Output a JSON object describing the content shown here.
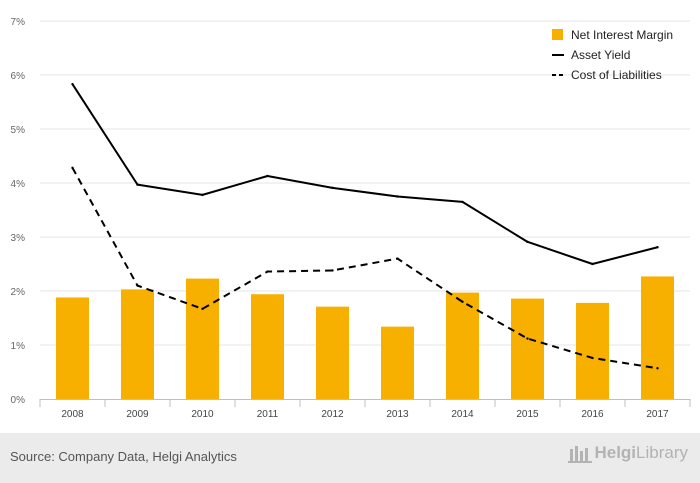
{
  "chart_data": {
    "type": "bar",
    "categories": [
      "2008",
      "2009",
      "2010",
      "2011",
      "2012",
      "2013",
      "2014",
      "2015",
      "2016",
      "2017"
    ],
    "series": [
      {
        "name": "Net Interest Margin",
        "kind": "bar",
        "color": "#f7b000",
        "values": [
          1.88,
          2.03,
          2.23,
          1.94,
          1.71,
          1.34,
          1.97,
          1.86,
          1.78,
          2.27
        ]
      },
      {
        "name": "Asset Yield",
        "kind": "line",
        "style": "solid",
        "color": "#000000",
        "values": [
          5.83,
          3.97,
          3.78,
          4.13,
          3.91,
          3.75,
          3.65,
          2.91,
          2.5,
          2.81
        ]
      },
      {
        "name": "Cost of Liabilities",
        "kind": "line",
        "style": "dashed",
        "color": "#000000",
        "values": [
          4.28,
          2.1,
          1.67,
          2.36,
          2.38,
          2.6,
          1.8,
          1.12,
          0.76,
          0.57
        ]
      }
    ],
    "y_ticks": [
      "0%",
      "1%",
      "2%",
      "3%",
      "4%",
      "5%",
      "6%",
      "7%"
    ],
    "ylim": [
      0,
      7
    ],
    "grid": true,
    "legend_position": "top-right"
  },
  "footer": {
    "source": "Source: Company Data, Helgi Analytics",
    "brand_part1": "Helgi",
    "brand_part2": "Library"
  }
}
